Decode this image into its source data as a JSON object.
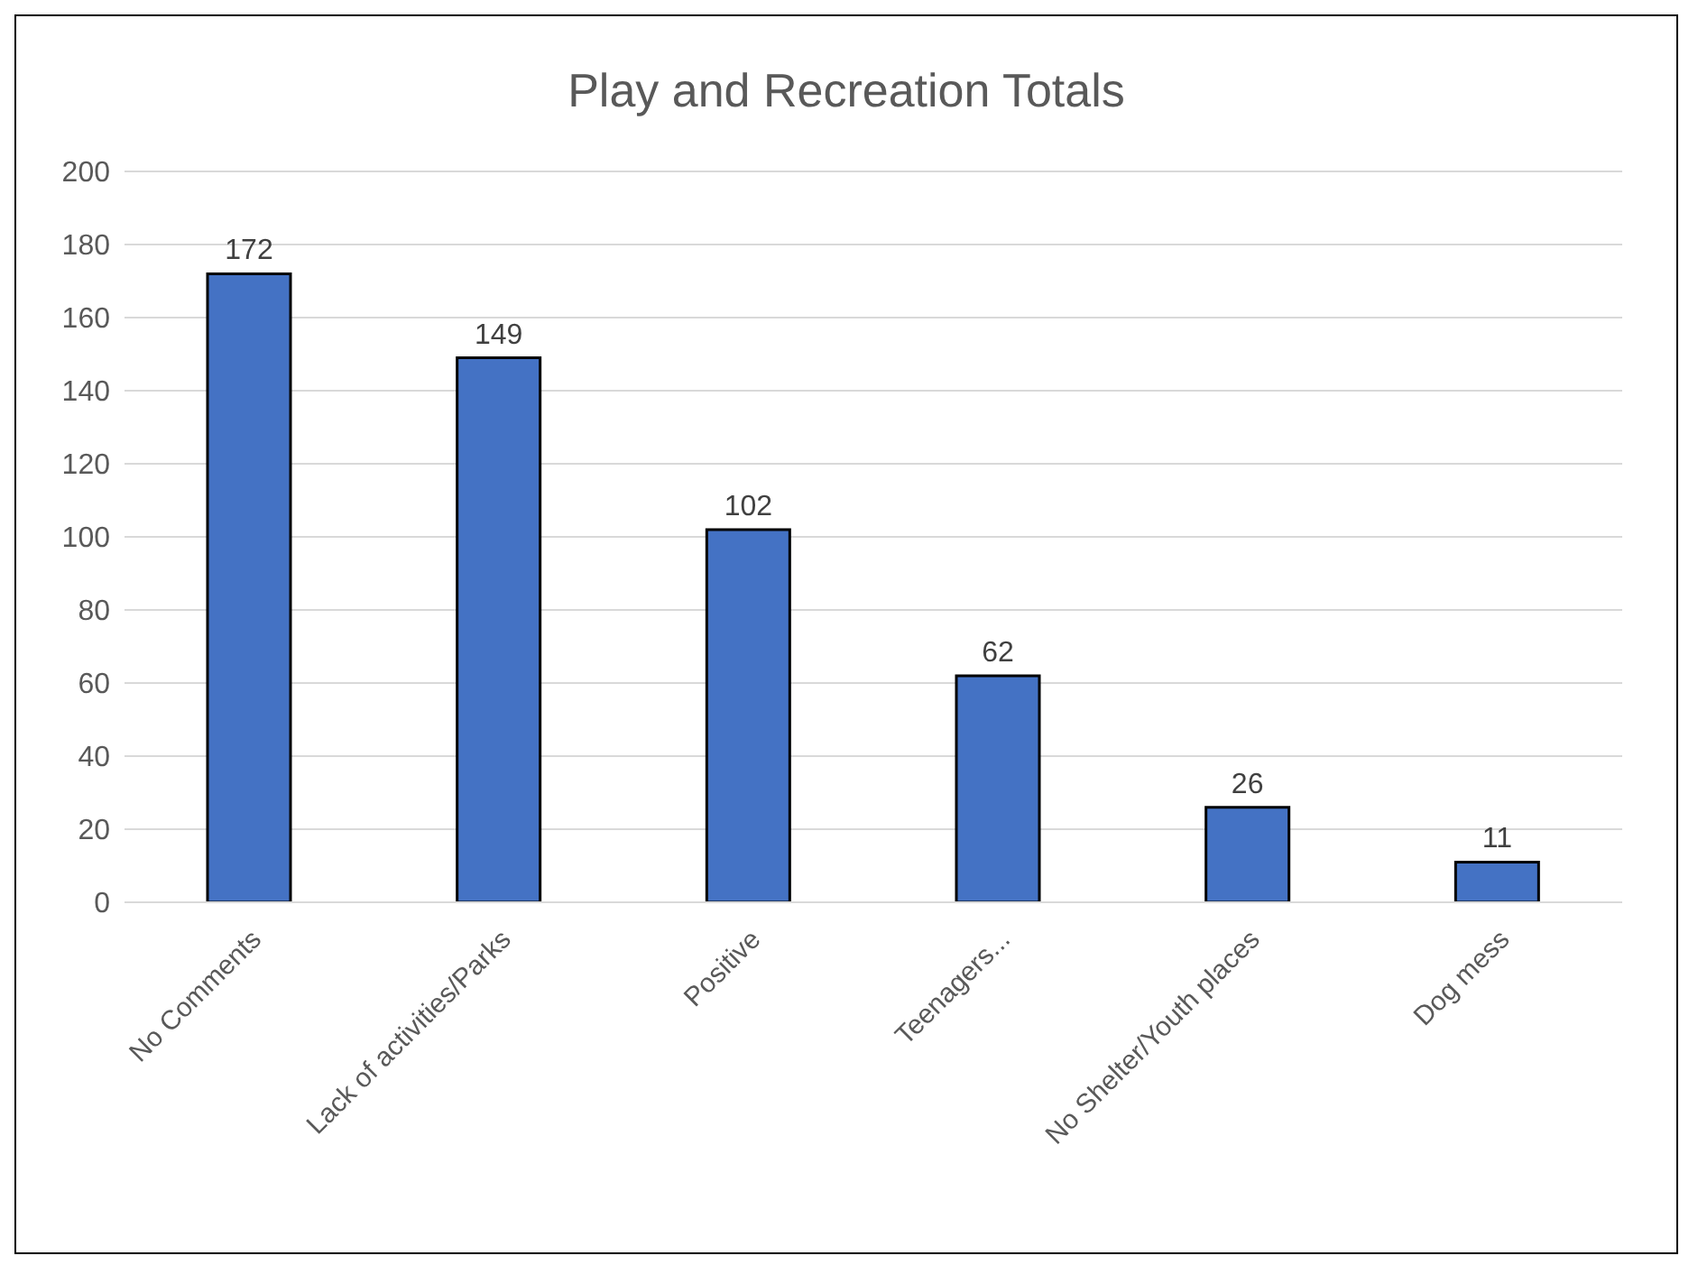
{
  "chart_data": {
    "type": "bar",
    "title": "Play and Recreation Totals",
    "categories": [
      "No Comments",
      "Lack of activities/Parks",
      "Positive",
      "Teenagers...",
      "No Shelter/Youth places",
      "Dog mess"
    ],
    "values": [
      172,
      149,
      102,
      62,
      26,
      11
    ],
    "color": "#4472c4",
    "ylim": [
      0,
      200
    ],
    "yticks": [
      0,
      20,
      40,
      60,
      80,
      100,
      120,
      140,
      160,
      180,
      200
    ],
    "grid": "y",
    "data_labels": true
  }
}
